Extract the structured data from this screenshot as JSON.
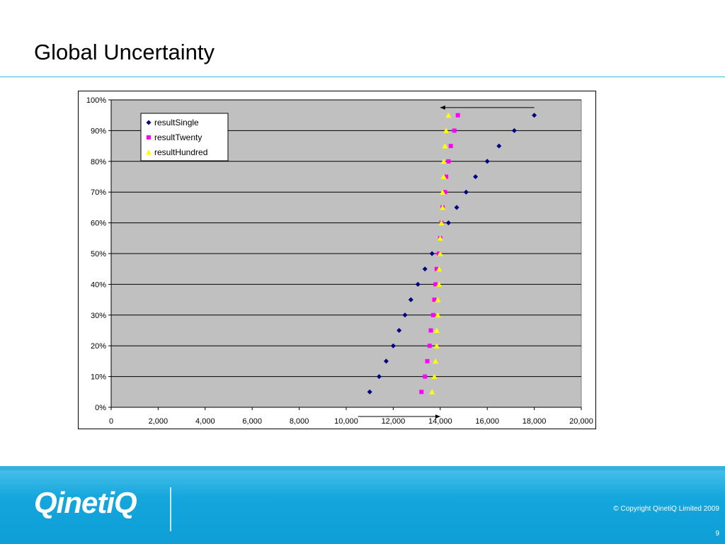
{
  "slide": {
    "title": "Global Uncertainty",
    "copyright": "© Copyright QinetiQ Limited 2009",
    "page_number": "9",
    "logo_text": "QinetiQ"
  },
  "colors": {
    "plot_bg": "#c0c0c0",
    "accent_line": "#39b7e1",
    "footer_blue": "#14a6dd",
    "series_single": "#000080",
    "series_twenty": "#ff00ff",
    "series_hundred": "#ffff00"
  },
  "chart_data": {
    "type": "scatter",
    "title": "",
    "xlabel": "",
    "ylabel": "",
    "xlim": [
      0,
      20000
    ],
    "ylim": [
      0,
      1
    ],
    "x_ticks": [
      0,
      2000,
      4000,
      6000,
      8000,
      10000,
      12000,
      14000,
      16000,
      18000,
      20000
    ],
    "x_tick_labels": [
      "0",
      "2,000",
      "4,000",
      "6,000",
      "8,000",
      "10,000",
      "12,000",
      "14,000",
      "16,000",
      "18,000",
      "20,000"
    ],
    "y_ticks": [
      0,
      0.1,
      0.2,
      0.3,
      0.4,
      0.5,
      0.6,
      0.7,
      0.8,
      0.9,
      1.0
    ],
    "y_tick_labels": [
      "0%",
      "10%",
      "20%",
      "30%",
      "40%",
      "50%",
      "60%",
      "70%",
      "80%",
      "90%",
      "100%"
    ],
    "grid": "horizontal",
    "legend_position": "top-left",
    "series": [
      {
        "name": "resultSingle",
        "marker": "diamond",
        "color": "#000080",
        "points": [
          [
            11000,
            0.05
          ],
          [
            11400,
            0.1
          ],
          [
            11700,
            0.15
          ],
          [
            12000,
            0.2
          ],
          [
            12250,
            0.25
          ],
          [
            12500,
            0.3
          ],
          [
            12750,
            0.35
          ],
          [
            13050,
            0.4
          ],
          [
            13350,
            0.45
          ],
          [
            13650,
            0.5
          ],
          [
            14350,
            0.6
          ],
          [
            14700,
            0.65
          ],
          [
            15100,
            0.7
          ],
          [
            15500,
            0.75
          ],
          [
            16000,
            0.8
          ],
          [
            16500,
            0.85
          ],
          [
            17150,
            0.9
          ],
          [
            18000,
            0.95
          ]
        ]
      },
      {
        "name": "resultTwenty",
        "marker": "square",
        "color": "#ff00ff",
        "points": [
          [
            13200,
            0.05
          ],
          [
            13350,
            0.1
          ],
          [
            13450,
            0.15
          ],
          [
            13550,
            0.2
          ],
          [
            13600,
            0.25
          ],
          [
            13700,
            0.3
          ],
          [
            13750,
            0.35
          ],
          [
            13800,
            0.4
          ],
          [
            13850,
            0.45
          ],
          [
            13950,
            0.5
          ],
          [
            14000,
            0.55
          ],
          [
            14050,
            0.6
          ],
          [
            14100,
            0.65
          ],
          [
            14200,
            0.7
          ],
          [
            14250,
            0.75
          ],
          [
            14350,
            0.8
          ],
          [
            14450,
            0.85
          ],
          [
            14600,
            0.9
          ],
          [
            14750,
            0.95
          ]
        ]
      },
      {
        "name": "resultHundred",
        "marker": "triangle",
        "color": "#ffff00",
        "points": [
          [
            13650,
            0.05
          ],
          [
            13750,
            0.1
          ],
          [
            13800,
            0.15
          ],
          [
            13850,
            0.2
          ],
          [
            13850,
            0.25
          ],
          [
            13900,
            0.3
          ],
          [
            13900,
            0.35
          ],
          [
            13950,
            0.4
          ],
          [
            13950,
            0.45
          ],
          [
            14000,
            0.5
          ],
          [
            14000,
            0.55
          ],
          [
            14050,
            0.6
          ],
          [
            14100,
            0.65
          ],
          [
            14100,
            0.7
          ],
          [
            14150,
            0.75
          ],
          [
            14150,
            0.8
          ],
          [
            14200,
            0.85
          ],
          [
            14250,
            0.9
          ],
          [
            14350,
            0.95
          ]
        ]
      }
    ],
    "annotations": [
      {
        "type": "arrow",
        "from": [
          10500,
          -0.03
        ],
        "to": [
          14000,
          -0.03
        ]
      },
      {
        "type": "arrow",
        "from": [
          18000,
          0.975
        ],
        "to": [
          14000,
          0.975
        ]
      }
    ]
  }
}
